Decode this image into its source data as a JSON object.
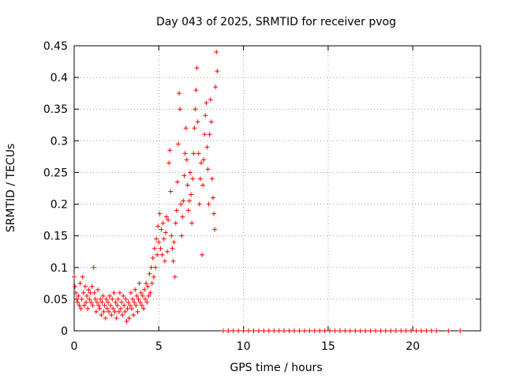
{
  "chart_data": {
    "type": "scatter",
    "title": "Day 043 of 2025, SRMTID for receiver pvog",
    "xlabel": "GPS time / hours",
    "ylabel": "SRMTID / TECUs",
    "xlim": [
      0,
      24
    ],
    "ylim": [
      0,
      0.45
    ],
    "x_ticks": [
      0,
      5,
      10,
      15,
      20
    ],
    "x_tick_labels": [
      "0",
      "5",
      "10",
      "15",
      "20"
    ],
    "y_ticks": [
      0,
      0.05,
      0.1,
      0.15,
      0.2,
      0.25,
      0.3,
      0.35,
      0.4,
      0.45
    ],
    "y_tick_labels": [
      "0",
      "0.05",
      "0.1",
      "0.15",
      "0.2",
      "0.25",
      "0.3",
      "0.35",
      "0.4",
      "0.45"
    ],
    "grid": true,
    "marker": "+",
    "color": "#ff0000",
    "series": [
      {
        "name": "SRMTID",
        "points": [
          [
            0.0,
            0.085
          ],
          [
            0.05,
            0.07
          ],
          [
            0.1,
            0.06
          ],
          [
            0.15,
            0.05
          ],
          [
            0.2,
            0.045
          ],
          [
            0.25,
            0.055
          ],
          [
            0.3,
            0.04
          ],
          [
            0.35,
            0.075
          ],
          [
            0.4,
            0.035
          ],
          [
            0.45,
            0.05
          ],
          [
            0.5,
            0.085
          ],
          [
            0.55,
            0.06
          ],
          [
            0.6,
            0.04
          ],
          [
            0.65,
            0.07
          ],
          [
            0.7,
            0.045
          ],
          [
            0.75,
            0.055
          ],
          [
            0.8,
            0.035
          ],
          [
            0.85,
            0.065
          ],
          [
            0.9,
            0.05
          ],
          [
            0.95,
            0.06
          ],
          [
            1.0,
            0.045
          ],
          [
            1.05,
            0.07
          ],
          [
            1.1,
            0.04
          ],
          [
            1.15,
            0.1
          ],
          [
            1.2,
            0.06
          ],
          [
            1.25,
            0.05
          ],
          [
            1.3,
            0.03
          ],
          [
            1.35,
            0.045
          ],
          [
            1.4,
            0.065
          ],
          [
            1.45,
            0.04
          ],
          [
            1.5,
            0.035
          ],
          [
            1.55,
            0.05
          ],
          [
            1.6,
            0.025
          ],
          [
            1.65,
            0.045
          ],
          [
            1.7,
            0.055
          ],
          [
            1.75,
            0.03
          ],
          [
            1.8,
            0.04
          ],
          [
            1.85,
            0.02
          ],
          [
            1.9,
            0.05
          ],
          [
            1.95,
            0.035
          ],
          [
            2.0,
            0.045
          ],
          [
            2.05,
            0.03
          ],
          [
            2.1,
            0.055
          ],
          [
            2.15,
            0.04
          ],
          [
            2.2,
            0.025
          ],
          [
            2.25,
            0.05
          ],
          [
            2.3,
            0.035
          ],
          [
            2.35,
            0.06
          ],
          [
            2.4,
            0.03
          ],
          [
            2.45,
            0.045
          ],
          [
            2.5,
            0.02
          ],
          [
            2.55,
            0.04
          ],
          [
            2.6,
            0.05
          ],
          [
            2.65,
            0.03
          ],
          [
            2.7,
            0.06
          ],
          [
            2.75,
            0.035
          ],
          [
            2.8,
            0.045
          ],
          [
            2.85,
            0.025
          ],
          [
            2.9,
            0.055
          ],
          [
            2.95,
            0.04
          ],
          [
            3.0,
            0.03
          ],
          [
            3.05,
            0.05
          ],
          [
            3.1,
            0.015
          ],
          [
            3.15,
            0.035
          ],
          [
            3.2,
            0.045
          ],
          [
            3.25,
            0.02
          ],
          [
            3.3,
            0.04
          ],
          [
            3.35,
            0.06
          ],
          [
            3.4,
            0.035
          ],
          [
            3.45,
            0.05
          ],
          [
            3.5,
            0.025
          ],
          [
            3.55,
            0.045
          ],
          [
            3.6,
            0.065
          ],
          [
            3.65,
            0.04
          ],
          [
            3.7,
            0.055
          ],
          [
            3.75,
            0.03
          ],
          [
            3.8,
            0.05
          ],
          [
            3.85,
            0.075
          ],
          [
            3.9,
            0.045
          ],
          [
            3.95,
            0.06
          ],
          [
            4.0,
            0.04
          ],
          [
            4.05,
            0.055
          ],
          [
            4.1,
            0.035
          ],
          [
            4.15,
            0.065
          ],
          [
            4.2,
            0.05
          ],
          [
            4.25,
            0.075
          ],
          [
            4.3,
            0.045
          ],
          [
            4.35,
            0.07
          ],
          [
            4.4,
            0.055
          ],
          [
            4.45,
            0.09
          ],
          [
            4.5,
            0.06
          ],
          [
            4.55,
            0.1
          ],
          [
            4.6,
            0.075
          ],
          [
            4.65,
            0.115
          ],
          [
            4.7,
            0.085
          ],
          [
            4.75,
            0.13
          ],
          [
            4.8,
            0.1
          ],
          [
            4.85,
            0.145
          ],
          [
            4.9,
            0.12
          ],
          [
            4.95,
            0.165
          ],
          [
            5.0,
            0.14
          ],
          [
            5.05,
            0.185
          ],
          [
            5.1,
            0.13
          ],
          [
            5.15,
            0.16
          ],
          [
            5.2,
            0.12
          ],
          [
            5.25,
            0.17
          ],
          [
            5.3,
            0.145
          ],
          [
            5.35,
            0.11
          ],
          [
            5.4,
            0.155
          ],
          [
            5.45,
            0.18
          ],
          [
            5.5,
            0.125
          ],
          [
            5.55,
            0.175
          ],
          [
            5.6,
            0.265
          ],
          [
            5.65,
            0.285
          ],
          [
            5.7,
            0.22
          ],
          [
            5.75,
            0.15
          ],
          [
            5.8,
            0.13
          ],
          [
            5.85,
            0.11
          ],
          [
            5.9,
            0.14
          ],
          [
            5.95,
            0.085
          ],
          [
            6.0,
            0.17
          ],
          [
            6.05,
            0.19
          ],
          [
            6.1,
            0.235
          ],
          [
            6.15,
            0.295
          ],
          [
            6.2,
            0.375
          ],
          [
            6.25,
            0.35
          ],
          [
            6.3,
            0.2
          ],
          [
            6.35,
            0.15
          ],
          [
            6.4,
            0.18
          ],
          [
            6.45,
            0.205
          ],
          [
            6.5,
            0.245
          ],
          [
            6.55,
            0.28
          ],
          [
            6.6,
            0.32
          ],
          [
            6.65,
            0.27
          ],
          [
            6.7,
            0.23
          ],
          [
            6.75,
            0.19
          ],
          [
            6.8,
            0.205
          ],
          [
            6.85,
            0.25
          ],
          [
            6.9,
            0.215
          ],
          [
            6.95,
            0.17
          ],
          [
            7.0,
            0.24
          ],
          [
            7.05,
            0.28
          ],
          [
            7.1,
            0.32
          ],
          [
            7.15,
            0.35
          ],
          [
            7.2,
            0.38
          ],
          [
            7.25,
            0.415
          ],
          [
            7.3,
            0.33
          ],
          [
            7.35,
            0.28
          ],
          [
            7.4,
            0.2
          ],
          [
            7.45,
            0.24
          ],
          [
            7.5,
            0.265
          ],
          [
            7.55,
            0.12
          ],
          [
            7.6,
            0.23
          ],
          [
            7.65,
            0.27
          ],
          [
            7.7,
            0.31
          ],
          [
            7.75,
            0.34
          ],
          [
            7.8,
            0.36
          ],
          [
            7.85,
            0.29
          ],
          [
            7.9,
            0.255
          ],
          [
            7.95,
            0.2
          ],
          [
            8.0,
            0.31
          ],
          [
            8.05,
            0.365
          ],
          [
            8.1,
            0.33
          ],
          [
            8.15,
            0.24
          ],
          [
            8.2,
            0.21
          ],
          [
            8.25,
            0.185
          ],
          [
            8.3,
            0.16
          ],
          [
            8.35,
            0.385
          ],
          [
            8.4,
            0.44
          ],
          [
            8.45,
            0.41
          ],
          [
            8.8,
            0
          ],
          [
            9.1,
            0
          ],
          [
            9.4,
            0
          ],
          [
            9.7,
            0
          ],
          [
            10.0,
            0
          ],
          [
            10.3,
            0
          ],
          [
            10.6,
            0
          ],
          [
            10.9,
            0
          ],
          [
            11.2,
            0
          ],
          [
            11.5,
            0
          ],
          [
            11.8,
            0
          ],
          [
            12.1,
            0
          ],
          [
            12.4,
            0
          ],
          [
            12.7,
            0
          ],
          [
            13.0,
            0
          ],
          [
            13.3,
            0
          ],
          [
            13.6,
            0
          ],
          [
            13.9,
            0
          ],
          [
            14.2,
            0
          ],
          [
            14.5,
            0
          ],
          [
            14.8,
            0
          ],
          [
            15.1,
            0
          ],
          [
            15.4,
            0
          ],
          [
            15.7,
            0
          ],
          [
            16.0,
            0
          ],
          [
            16.3,
            0
          ],
          [
            16.6,
            0
          ],
          [
            16.9,
            0
          ],
          [
            17.2,
            0
          ],
          [
            17.5,
            0
          ],
          [
            17.8,
            0
          ],
          [
            18.1,
            0
          ],
          [
            18.4,
            0
          ],
          [
            18.7,
            0
          ],
          [
            19.0,
            0
          ],
          [
            19.3,
            0
          ],
          [
            19.6,
            0
          ],
          [
            19.9,
            0
          ],
          [
            20.2,
            0
          ],
          [
            20.5,
            0
          ],
          [
            20.8,
            0
          ],
          [
            21.1,
            0
          ],
          [
            21.4,
            0
          ],
          [
            22.1,
            0
          ],
          [
            22.8,
            0
          ]
        ]
      }
    ]
  }
}
